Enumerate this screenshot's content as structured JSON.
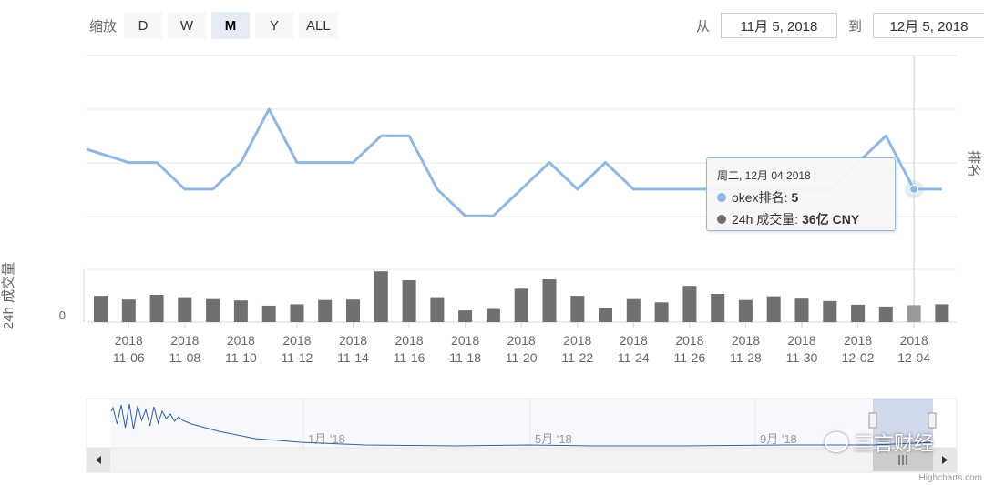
{
  "range_selector": {
    "label": "缩放",
    "buttons": [
      "D",
      "W",
      "M",
      "Y",
      "ALL"
    ],
    "active": "M"
  },
  "date_range": {
    "from_label": "从",
    "from_value": "11月 5, 2018",
    "to_label": "到",
    "to_value": "12月 5, 2018"
  },
  "chart_data": {
    "type": "line+bar",
    "x_dates": [
      "11-05",
      "11-06",
      "11-07",
      "11-08",
      "11-09",
      "11-10",
      "11-11",
      "11-12",
      "11-13",
      "11-14",
      "11-15",
      "11-16",
      "11-17",
      "11-18",
      "11-19",
      "11-20",
      "11-21",
      "11-22",
      "11-23",
      "11-24",
      "11-25",
      "11-26",
      "11-27",
      "11-28",
      "11-29",
      "11-30",
      "12-01",
      "12-02",
      "12-03",
      "12-04",
      "12-05"
    ],
    "x_tick_labels": [
      {
        "date": "11-06",
        "year": "2018",
        "label": "11-06"
      },
      {
        "date": "11-08",
        "year": "2018",
        "label": "11-08"
      },
      {
        "date": "11-10",
        "year": "2018",
        "label": "11-10"
      },
      {
        "date": "11-12",
        "year": "2018",
        "label": "11-12"
      },
      {
        "date": "11-14",
        "year": "2018",
        "label": "11-14"
      },
      {
        "date": "11-16",
        "year": "2018",
        "label": "11-16"
      },
      {
        "date": "11-18",
        "year": "2018",
        "label": "11-18"
      },
      {
        "date": "11-20",
        "year": "2018",
        "label": "11-20"
      },
      {
        "date": "11-22",
        "year": "2018",
        "label": "11-22"
      },
      {
        "date": "11-24",
        "year": "2018",
        "label": "11-24"
      },
      {
        "date": "11-26",
        "year": "2018",
        "label": "11-26"
      },
      {
        "date": "11-28",
        "year": "2018",
        "label": "11-28"
      },
      {
        "date": "11-30",
        "year": "2018",
        "label": "11-30"
      },
      {
        "date": "12-02",
        "year": "2018",
        "label": "12-02"
      },
      {
        "date": "12-04",
        "year": "2018",
        "label": "12-04"
      }
    ],
    "rank_series": {
      "name": "okex排名",
      "axis_label": "排名",
      "color": "#8fb7e4",
      "x": [
        "11-05",
        "11-06",
        "11-07",
        "11-08",
        "11-09",
        "11-10",
        "11-11",
        "11-12",
        "11-13",
        "11-14",
        "11-15",
        "11-16",
        "11-17",
        "11-18",
        "11-19",
        "11-20",
        "11-21",
        "11-22",
        "11-23",
        "11-24",
        "11-25",
        "11-26",
        "11-27",
        "11-28",
        "11-29",
        "11-30",
        "12-01",
        "12-02",
        "12-03",
        "12-04",
        "12-05"
      ],
      "values": [
        3.5,
        4,
        4,
        5,
        5,
        4,
        2,
        4,
        4,
        4,
        3,
        3,
        5,
        6,
        6,
        5,
        4,
        5,
        4,
        5,
        5,
        5,
        5,
        5,
        5,
        5,
        5,
        4,
        3,
        5,
        5
      ],
      "axis_range": [
        2,
        7
      ]
    },
    "volume_series": {
      "name": "24h 成交量",
      "axis_label": "24h 成交量",
      "color": "#707070",
      "unit": "亿 CNY",
      "x": [
        "11-05",
        "11-06",
        "11-07",
        "11-08",
        "11-09",
        "11-10",
        "11-11",
        "11-12",
        "11-13",
        "11-14",
        "11-15",
        "11-16",
        "11-17",
        "11-18",
        "11-19",
        "11-20",
        "11-21",
        "11-22",
        "11-23",
        "11-24",
        "11-25",
        "11-26",
        "11-27",
        "11-28",
        "11-29",
        "11-30",
        "12-01",
        "12-02",
        "12-03",
        "12-04",
        "12-05"
      ],
      "values": [
        56,
        48,
        58,
        53,
        49,
        46,
        35,
        38,
        47,
        48,
        108,
        89,
        53,
        25,
        28,
        71,
        91,
        56,
        30,
        49,
        42,
        77,
        60,
        47,
        55,
        50,
        45,
        37,
        33,
        36,
        38
      ],
      "axis_tick": "0",
      "axis_range": [
        0,
        120
      ]
    },
    "tooltip": {
      "date": "周二, 12月 04 2018",
      "rank_label": "okex排名: ",
      "rank_value": "5",
      "volume_label": "24h 成交量: ",
      "volume_value": "36亿 CNY"
    },
    "navigator": {
      "labels": [
        "1月 '18",
        "5月 '18",
        "9月 '18"
      ]
    }
  },
  "credits": "Highcharts.com",
  "watermark": "三言财经"
}
